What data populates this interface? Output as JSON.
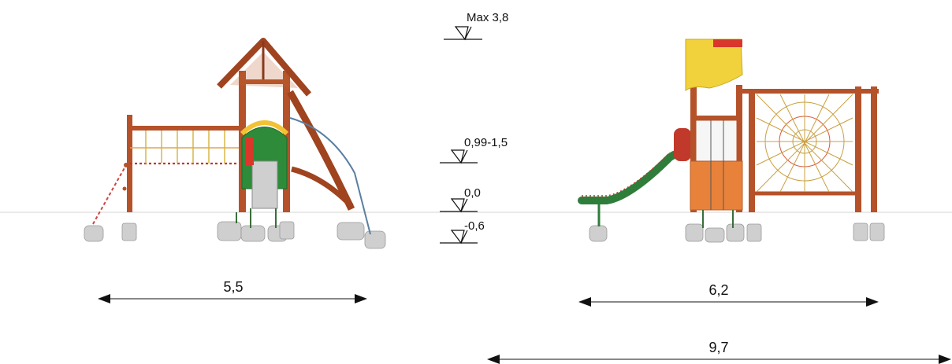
{
  "levels": {
    "max": "Max 3,8",
    "fall_height": "0,99-1,5",
    "ground": "0,0",
    "foundation": "-0,6"
  },
  "dimensions": {
    "side_view_width": "5,5",
    "front_view_width": "6,2",
    "total_width": "9,7"
  },
  "colors": {
    "wood": "#b5522a",
    "wood_dark": "#8a3a1c",
    "roof_yellow": "#f2d23c",
    "roof_red": "#d8372a",
    "panel_green": "#2e8b3a",
    "panel_orange": "#e8823a",
    "slide_green": "#2f7d3a",
    "footing_gray": "#c9c9c9",
    "ground_line": "#d6d6d6"
  }
}
